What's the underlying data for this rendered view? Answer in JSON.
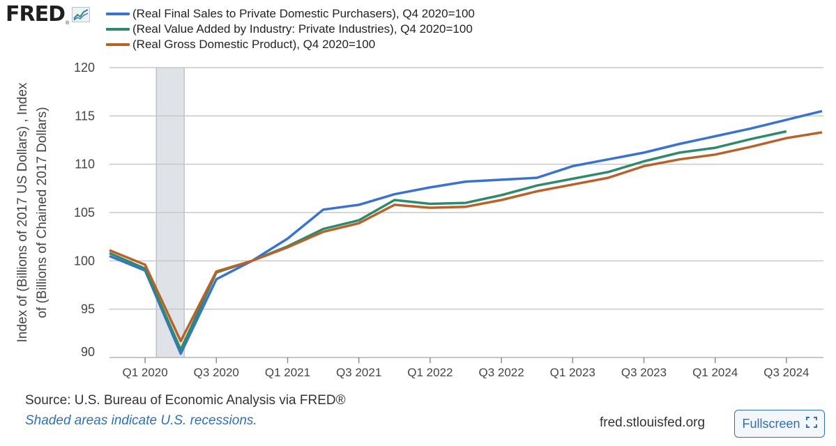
{
  "logo": {
    "text": "FRED",
    "mark": "®",
    "icon": "line-graph-icon"
  },
  "colors": {
    "blue": "#3a72d0",
    "green": "#2f8a6c",
    "orange": "#b8622a",
    "recession": "#dfe2e6",
    "grid": "#c8c8c8",
    "accent": "#2e6fb6"
  },
  "chart_data": {
    "type": "line",
    "title": "",
    "xlabel": "",
    "ylabel": "Index of (Billions of 2017 US Dollars) , Index of (Billions of Chained 2017 Dollars)",
    "ylim": [
      90,
      120
    ],
    "yticks": [
      90,
      95,
      100,
      105,
      110,
      115,
      120
    ],
    "x": [
      "Q4 2019",
      "Q1 2020",
      "Q2 2020",
      "Q3 2020",
      "Q4 2020",
      "Q1 2021",
      "Q2 2021",
      "Q3 2021",
      "Q4 2021",
      "Q1 2022",
      "Q2 2022",
      "Q3 2022",
      "Q4 2022",
      "Q1 2023",
      "Q2 2023",
      "Q3 2023",
      "Q4 2023",
      "Q1 2024",
      "Q2 2024",
      "Q3 2024",
      "Q4 2024"
    ],
    "xticks": [
      "Q1 2020",
      "Q3 2020",
      "Q1 2021",
      "Q3 2021",
      "Q1 2022",
      "Q3 2022",
      "Q1 2023",
      "Q3 2023",
      "Q1 2024",
      "Q3 2024"
    ],
    "recession": {
      "from": "Q1 2020",
      "to": "Q2 2020"
    },
    "series": [
      {
        "name": "(Real Final Sales to Private Domestic Purchasers), Q4 2020=100",
        "color": "#3a72d0",
        "values": [
          100.5,
          99.0,
          90.4,
          98.1,
          100.0,
          102.3,
          105.3,
          105.8,
          106.9,
          107.6,
          108.2,
          108.4,
          108.6,
          109.8,
          110.5,
          111.2,
          112.1,
          112.9,
          113.7,
          114.6,
          115.5
        ]
      },
      {
        "name": "(Real Value Added by Industry: Private Industries), Q4 2020=100",
        "color": "#2f8a6c",
        "values": [
          100.8,
          99.2,
          90.8,
          98.8,
          100.0,
          101.5,
          103.3,
          104.2,
          106.3,
          105.9,
          106.0,
          106.8,
          107.8,
          108.5,
          109.2,
          110.3,
          111.2,
          111.7,
          112.6,
          113.4,
          null
        ]
      },
      {
        "name": "(Real Gross Domestic Product), Q4 2020=100",
        "color": "#b8622a",
        "values": [
          101.1,
          99.6,
          91.7,
          98.9,
          100.0,
          101.4,
          103.0,
          103.9,
          105.8,
          105.5,
          105.6,
          106.3,
          107.2,
          107.9,
          108.6,
          109.8,
          110.5,
          111.0,
          111.8,
          112.7,
          113.3
        ]
      }
    ]
  },
  "footer": {
    "source": "Source: U.S. Bureau of Economic Analysis via FRED®",
    "shaded_note": "Shaded areas indicate U.S. recessions.",
    "url": "fred.stlouisfed.org",
    "fullscreen_label": "Fullscreen",
    "fullscreen_icon": "expand-corners-icon"
  }
}
